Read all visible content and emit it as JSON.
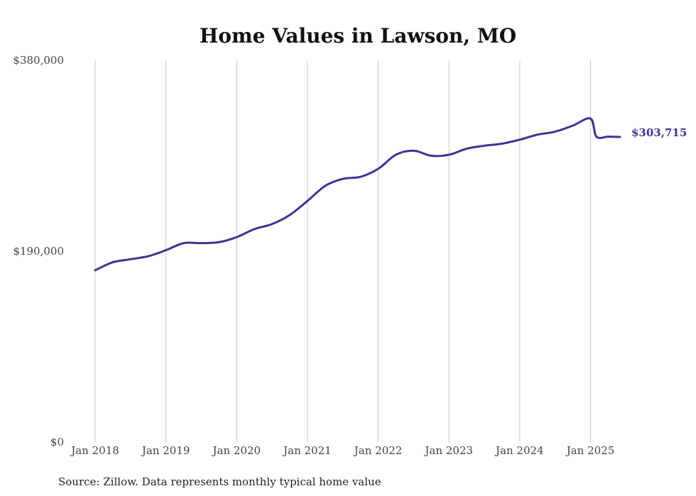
{
  "chart_data": {
    "type": "line",
    "title": "Home Values in Lawson, MO",
    "source": "Source: Zillow. Data represents monthly typical home value",
    "line_color": "#3b3594",
    "ylim": [
      0,
      380000
    ],
    "y_ticks": [
      {
        "value": 0,
        "label": "$0"
      },
      {
        "value": 190000,
        "label": "$190,000"
      },
      {
        "value": 380000,
        "label": "$380,000"
      }
    ],
    "x_range": [
      "2018-01",
      "2025-06"
    ],
    "x_ticks": [
      {
        "date": "2018-01",
        "label": "Jan 2018"
      },
      {
        "date": "2019-01",
        "label": "Jan 2019"
      },
      {
        "date": "2020-01",
        "label": "Jan 2020"
      },
      {
        "date": "2021-01",
        "label": "Jan 2021"
      },
      {
        "date": "2022-01",
        "label": "Jan 2022"
      },
      {
        "date": "2023-01",
        "label": "Jan 2023"
      },
      {
        "date": "2024-01",
        "label": "Jan 2024"
      },
      {
        "date": "2025-01",
        "label": "Jan 2025"
      }
    ],
    "grid": "vertical",
    "end_label": "$303,715",
    "series": [
      {
        "name": "",
        "x": [
          "2018-01",
          "2018-04",
          "2018-07",
          "2018-10",
          "2019-01",
          "2019-04",
          "2019-07",
          "2019-10",
          "2020-01",
          "2020-04",
          "2020-07",
          "2020-10",
          "2021-01",
          "2021-04",
          "2021-07",
          "2021-10",
          "2022-01",
          "2022-04",
          "2022-07",
          "2022-10",
          "2023-01",
          "2023-04",
          "2023-07",
          "2023-10",
          "2024-01",
          "2024-04",
          "2024-07",
          "2024-10",
          "2025-01",
          "2025-02",
          "2025-04",
          "2025-06"
        ],
        "values": [
          171000,
          179000,
          182000,
          185000,
          191000,
          198000,
          198000,
          199000,
          204000,
          212000,
          217000,
          226000,
          240000,
          255000,
          262000,
          264000,
          272000,
          286000,
          290000,
          285000,
          286000,
          292000,
          295000,
          297000,
          301000,
          306000,
          309000,
          315000,
          322000,
          304000,
          304000,
          303715
        ]
      }
    ]
  }
}
